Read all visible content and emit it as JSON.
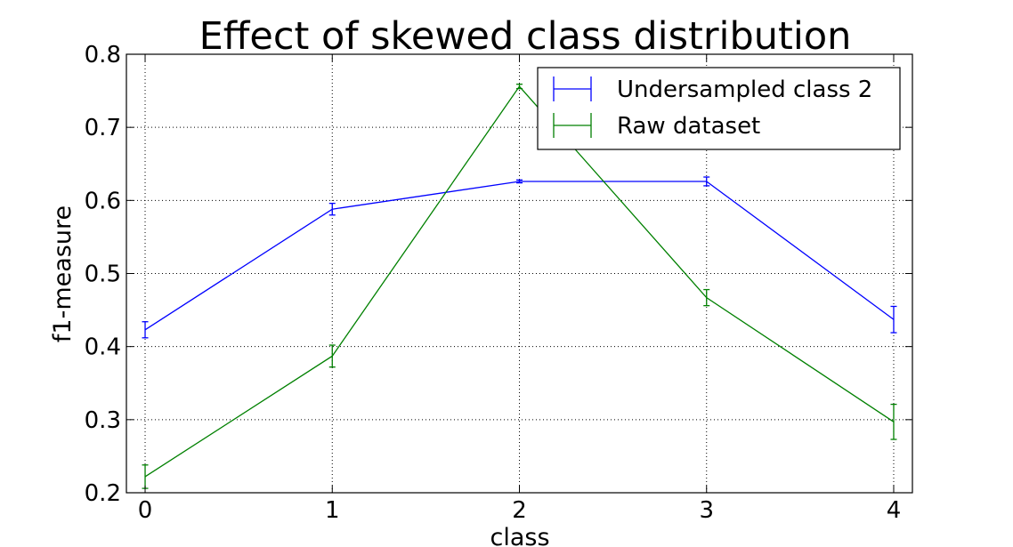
{
  "chart_data": {
    "type": "line",
    "title": "Effect of skewed class distribution",
    "xlabel": "class",
    "ylabel": "f1-measure",
    "xlim": [
      -0.1,
      4.1
    ],
    "ylim": [
      0.2,
      0.8
    ],
    "x": [
      0,
      1,
      2,
      3,
      4
    ],
    "xticks": [
      "0",
      "1",
      "2",
      "3",
      "4"
    ],
    "yticks": [
      "0.2",
      "0.3",
      "0.4",
      "0.5",
      "0.6",
      "0.7",
      "0.8"
    ],
    "grid": true,
    "legend_position": "top-right",
    "series": [
      {
        "name": "Undersampled class 2",
        "color": "#0000ff",
        "values": [
          0.423,
          0.588,
          0.626,
          0.626,
          0.437
        ],
        "errors": [
          0.011,
          0.008,
          0.002,
          0.006,
          0.018
        ]
      },
      {
        "name": "Raw dataset",
        "color": "#008000",
        "values": [
          0.222,
          0.387,
          0.756,
          0.467,
          0.297
        ],
        "errors": [
          0.016,
          0.015,
          0.003,
          0.011,
          0.024
        ]
      }
    ]
  }
}
